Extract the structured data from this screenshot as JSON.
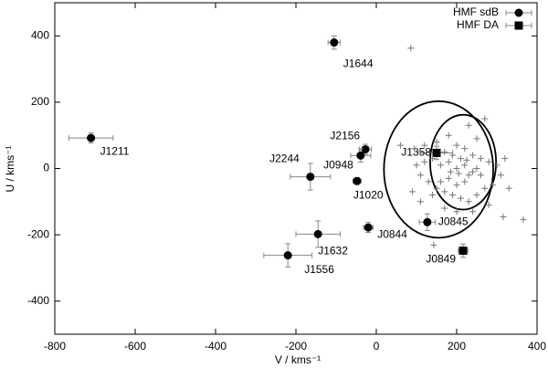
{
  "chart_data": {
    "type": "scatter",
    "xlabel": "V / kms⁻¹",
    "ylabel": "U / kms⁻¹",
    "xlim": [
      -800,
      400
    ],
    "ylim": [
      -500,
      500
    ],
    "xticks": [
      -800,
      -600,
      -400,
      -200,
      0,
      200,
      400
    ],
    "yticks": [
      -400,
      -200,
      0,
      200,
      400
    ],
    "legend": "upper right",
    "series": [
      {
        "name": "HMF sdB",
        "marker": "circle",
        "color": "#000000",
        "labels": [
          "J1644",
          "J1211",
          "J2156",
          "J0948",
          "J2244",
          "J1020",
          "J0844",
          "J0845",
          "J1632",
          "J1556"
        ],
        "x": [
          -105,
          -710,
          -27,
          -39,
          -164,
          -48,
          -20,
          127,
          -145,
          -220
        ],
        "values": [
          380,
          92,
          58,
          39,
          -25,
          -38,
          -178,
          -162,
          -198,
          -262
        ],
        "xerr": [
          15,
          55,
          15,
          25,
          50,
          10,
          12,
          20,
          55,
          60
        ],
        "yerr": [
          20,
          15,
          15,
          20,
          40,
          10,
          15,
          25,
          40,
          35
        ]
      },
      {
        "name": "HMF DA",
        "marker": "square",
        "color": "#000000",
        "labels": [
          "J1358",
          "J0849"
        ],
        "x": [
          150,
          216
        ],
        "values": [
          47,
          -248
        ],
        "xerr": [
          40,
          12
        ],
        "yerr": [
          20,
          20
        ]
      },
      {
        "marker": "plus",
        "color": "#777777",
        "x": [
          86,
          366,
          316,
          143,
          250,
          270,
          230,
          180,
          120,
          95,
          110,
          150,
          200,
          220,
          240,
          260,
          280,
          300,
          310,
          290,
          270,
          250,
          230,
          210,
          190,
          170,
          150,
          130,
          110,
          100,
          120,
          140,
          160,
          180,
          200,
          220,
          240,
          260,
          180,
          200,
          220,
          160,
          140,
          170,
          200,
          240,
          280,
          320,
          330,
          90,
          60,
          110,
          190,
          210,
          230,
          170,
          250,
          205,
          185,
          225
        ],
        "values": [
          363,
          -154,
          -146,
          -231,
          90,
          150,
          130,
          100,
          70,
          60,
          50,
          80,
          70,
          60,
          40,
          30,
          20,
          10,
          -20,
          -50,
          -60,
          -80,
          -100,
          -90,
          -80,
          -70,
          -60,
          -40,
          -20,
          10,
          20,
          30,
          10,
          20,
          0,
          10,
          -10,
          -20,
          -30,
          -50,
          -40,
          -40,
          -80,
          -120,
          -130,
          -130,
          -110,
          30,
          -60,
          -70,
          70,
          -100,
          40,
          30,
          -20,
          50,
          0,
          -15,
          -10,
          25
        ]
      }
    ],
    "ellipses": [
      {
        "cx": 155,
        "cy": -3,
        "rx": 136,
        "ry": 206
      },
      {
        "cx": 216,
        "cy": 19,
        "rx": 82,
        "ry": 143
      }
    ]
  }
}
